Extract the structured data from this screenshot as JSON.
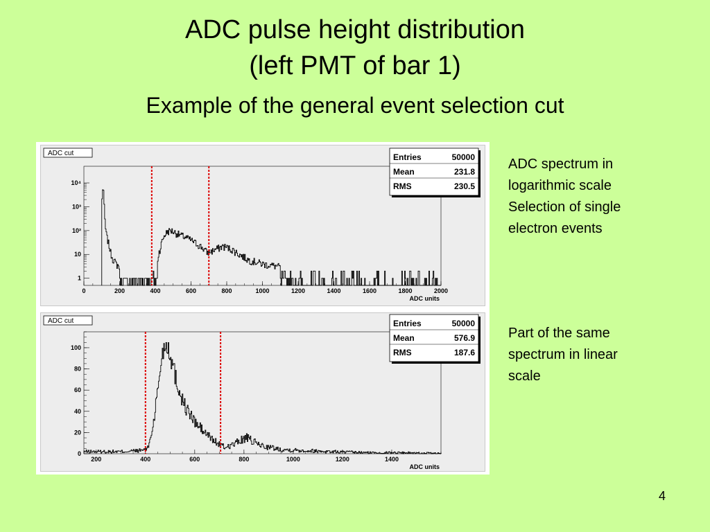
{
  "slide": {
    "title_line1": "ADC pulse height distribution",
    "title_line2": "(left PMT of bar 1)",
    "subtitle": "Example of the general event selection cut",
    "note_top": [
      "ADC spectrum in",
      "logarithmic scale",
      "Selection of single",
      "electron events"
    ],
    "note_bottom": [
      "Part of the same",
      "spectrum  in linear",
      "scale"
    ],
    "page_number": "4"
  },
  "colors": {
    "background": "#ccff99",
    "histogram": "#000000",
    "cut_lines": "#dd0000",
    "frame_fill": "#ededed"
  },
  "chart_data": [
    {
      "type": "histogram",
      "name_label": "ADC cut",
      "xlabel": "ADC units",
      "ylabel": "",
      "xlim": [
        0,
        2000
      ],
      "ylog": true,
      "ylim": [
        0.5,
        50000
      ],
      "xticks": [
        0,
        200,
        400,
        600,
        800,
        1000,
        1200,
        1400,
        1600,
        1800,
        2000
      ],
      "yticks": [
        {
          "value": 1,
          "label": "1"
        },
        {
          "value": 10,
          "label": "10"
        },
        {
          "value": 100,
          "label": "10²"
        },
        {
          "value": 1000,
          "label": "10³"
        },
        {
          "value": 10000,
          "label": "10⁴"
        }
      ],
      "stats": [
        {
          "label": "Entries",
          "value": "50000"
        },
        {
          "label": "Mean",
          "value": "231.8"
        },
        {
          "label": "RMS",
          "value": "230.5"
        }
      ],
      "cuts": [
        380,
        700
      ],
      "bin_width": 4,
      "points": [
        [
          100,
          1
        ],
        [
          108,
          8000
        ],
        [
          112,
          1500
        ],
        [
          116,
          400
        ],
        [
          120,
          150
        ],
        [
          124,
          80
        ],
        [
          130,
          50
        ],
        [
          140,
          25
        ],
        [
          150,
          12
        ],
        [
          160,
          7
        ],
        [
          180,
          4
        ],
        [
          200,
          3
        ],
        [
          240,
          2
        ],
        [
          300,
          2
        ],
        [
          360,
          1.5
        ],
        [
          390,
          1
        ],
        [
          410,
          3
        ],
        [
          430,
          20
        ],
        [
          450,
          60
        ],
        [
          470,
          95
        ],
        [
          490,
          100
        ],
        [
          510,
          85
        ],
        [
          540,
          65
        ],
        [
          580,
          48
        ],
        [
          620,
          32
        ],
        [
          660,
          20
        ],
        [
          690,
          12
        ],
        [
          720,
          14
        ],
        [
          750,
          18
        ],
        [
          780,
          22
        ],
        [
          800,
          20
        ],
        [
          830,
          16
        ],
        [
          870,
          10
        ],
        [
          920,
          6
        ],
        [
          1000,
          4
        ],
        [
          1100,
          3
        ],
        [
          1200,
          2
        ],
        [
          1300,
          1.5
        ],
        [
          1450,
          1.2
        ],
        [
          1600,
          1
        ],
        [
          1800,
          1
        ],
        [
          2000,
          1
        ]
      ]
    },
    {
      "type": "histogram",
      "name_label": "ADC cut",
      "xlabel": "ADC units",
      "ylabel": "",
      "xlim": [
        150,
        1600
      ],
      "ylog": false,
      "ylim": [
        0,
        115
      ],
      "xticks": [
        200,
        400,
        600,
        800,
        1000,
        1200,
        1400
      ],
      "yticks": [
        {
          "value": 0,
          "label": "0"
        },
        {
          "value": 20,
          "label": "20"
        },
        {
          "value": 40,
          "label": "40"
        },
        {
          "value": 60,
          "label": "60"
        },
        {
          "value": 80,
          "label": "80"
        },
        {
          "value": 100,
          "label": "100"
        }
      ],
      "stats": [
        {
          "label": "Entries",
          "value": "50000"
        },
        {
          "label": "Mean",
          "value": "576.9"
        },
        {
          "label": "RMS",
          "value": "187.6"
        }
      ],
      "cuts": [
        400,
        705
      ],
      "bin_width": 3,
      "points": [
        [
          150,
          2
        ],
        [
          300,
          2
        ],
        [
          380,
          3
        ],
        [
          410,
          5
        ],
        [
          430,
          25
        ],
        [
          450,
          60
        ],
        [
          465,
          90
        ],
        [
          480,
          105
        ],
        [
          495,
          100
        ],
        [
          510,
          85
        ],
        [
          530,
          65
        ],
        [
          560,
          45
        ],
        [
          600,
          30
        ],
        [
          640,
          20
        ],
        [
          680,
          12
        ],
        [
          720,
          6
        ],
        [
          760,
          9
        ],
        [
          790,
          13
        ],
        [
          810,
          15
        ],
        [
          840,
          11
        ],
        [
          880,
          7
        ],
        [
          950,
          4
        ],
        [
          1050,
          3
        ],
        [
          1150,
          2
        ],
        [
          1300,
          1
        ],
        [
          1450,
          1
        ],
        [
          1600,
          0
        ]
      ]
    }
  ]
}
